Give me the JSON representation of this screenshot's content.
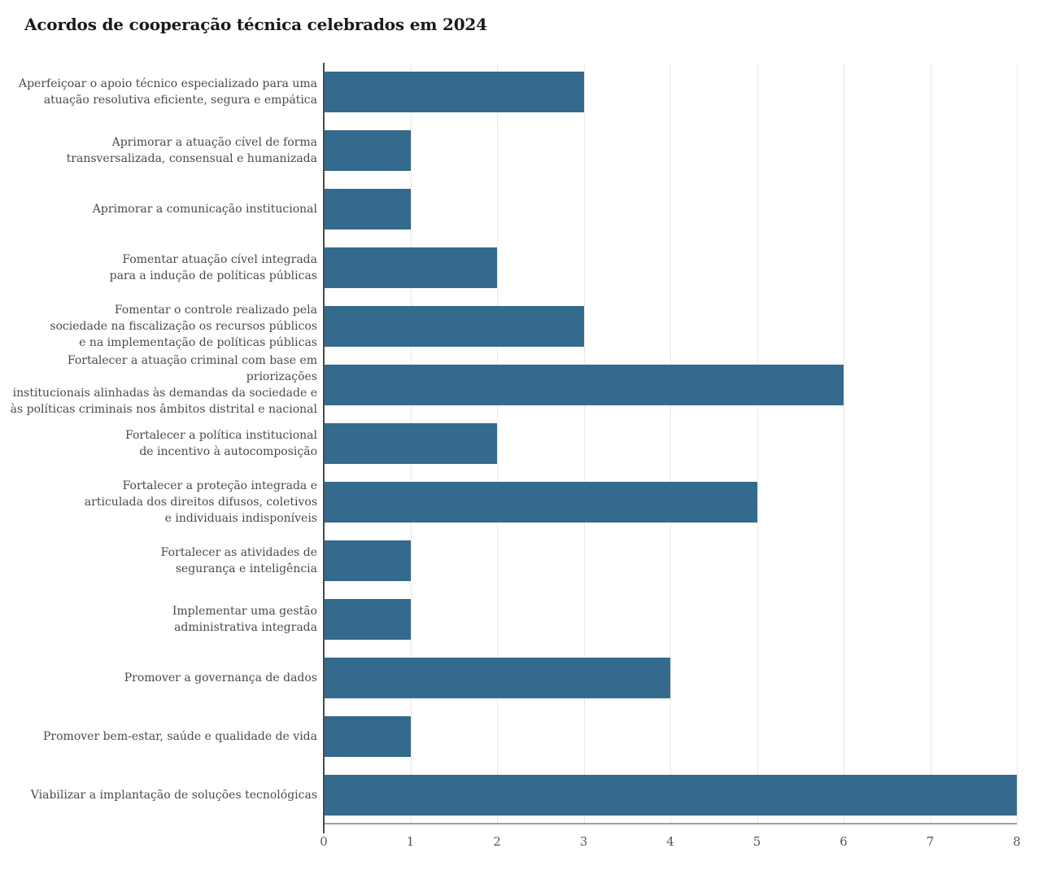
{
  "chart": {
    "title": "Acordos de cooperação técnica celebrados em 2024"
  },
  "colors": {
    "bar": "#346a8d",
    "gridline": "#e7e7e7",
    "x_axis_line": "#9f9f9f",
    "y_spine": "#4a4a4a",
    "label_text": "#4a4a4a",
    "tick_text": "#565656",
    "title_text": "#1a1a1a",
    "background": "#ffffff"
  },
  "chart_data": {
    "type": "bar",
    "orientation": "horizontal",
    "title": "Acordos de cooperação técnica celebrados em 2024",
    "categories": [
      "Aperfeiçoar o apoio técnico especializado para uma\natuação resolutiva eficiente, segura e empática",
      "Aprimorar a atuação cível de forma\ntransversalizada, consensual e humanizada",
      "Aprimorar a comunicação institucional",
      "Fomentar atuação cível integrada\npara a indução de políticas públicas",
      "Fomentar o controle realizado pela\nsociedade na fiscalização os recursos públicos\ne na implementação de políticas públicas",
      "Fortalecer a atuação criminal com base em priorizações\ninstitucionais alinhadas às demandas da sociedade e\nàs políticas criminais nos âmbitos distrital e nacional",
      "Fortalecer a política institucional\nde incentivo à autocomposição",
      "Fortalecer a proteção integrada e\narticulada dos direitos difusos, coletivos\ne individuais indisponíveis",
      "Fortalecer as atividades de\nsegurança e inteligência",
      "Implementar uma gestão\nadministrativa integrada",
      "Promover a governança de dados",
      "Promover bem-estar, saúde e qualidade de vida",
      "Viabilizar a implantação de soluções tecnológicas"
    ],
    "values": [
      3,
      1,
      1,
      2,
      3,
      6,
      2,
      5,
      1,
      1,
      4,
      1,
      8
    ],
    "x_ticks": [
      "0",
      "1",
      "2",
      "3",
      "4",
      "5",
      "6",
      "7",
      "8"
    ],
    "xlim": [
      0,
      8
    ],
    "xlabel": "",
    "ylabel": "",
    "grid": true,
    "legend": false
  }
}
